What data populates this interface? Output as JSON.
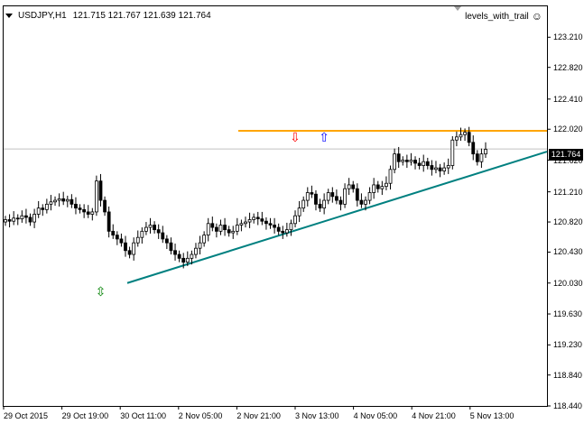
{
  "header": {
    "symbol_timeframe": "USDJPY,H1",
    "ohlc": "121.715 121.767 121.639 121.764"
  },
  "indicator": {
    "name": "levels_with_trail",
    "icon": "smiley-icon"
  },
  "current_price_label": "121.764",
  "colors": {
    "background": "#ffffff",
    "candle": "#000000",
    "resistance_line": "#ffa500",
    "trend_line": "#008080",
    "sell_arrow": "#ff0000",
    "buy_arrow": "#0000ff",
    "double_arrow": "#008000",
    "bid_line": "#c0c0c0"
  },
  "y_axis": {
    "ticks": [
      "123.210",
      "122.820",
      "122.410",
      "122.020",
      "121.620",
      "121.210",
      "120.820",
      "120.430",
      "120.030",
      "119.630",
      "119.230",
      "118.840",
      "118.440"
    ]
  },
  "x_axis": {
    "ticks": [
      "29 Oct 2015",
      "29 Oct 19:00",
      "30 Oct 11:00",
      "2 Nov 05:00",
      "2 Nov 21:00",
      "3 Nov 13:00",
      "4 Nov 05:00",
      "4 Nov 21:00",
      "5 Nov 13:00"
    ]
  },
  "chart_data": {
    "type": "candlestick",
    "ylim": [
      118.44,
      123.61
    ],
    "resistance_level": 122.0,
    "trend_line": {
      "from": 120.03,
      "to": 121.73
    },
    "bid_price": 121.764,
    "closes": [
      120.85,
      120.83,
      120.87,
      120.86,
      120.9,
      120.88,
      120.82,
      120.92,
      121.0,
      120.98,
      121.05,
      121.08,
      121.1,
      121.12,
      121.09,
      121.11,
      121.05,
      121.0,
      120.98,
      120.95,
      120.92,
      120.95,
      121.35,
      121.1,
      120.95,
      120.7,
      120.65,
      120.6,
      120.55,
      120.45,
      120.4,
      120.55,
      120.62,
      120.7,
      120.75,
      120.78,
      120.72,
      120.68,
      120.6,
      120.55,
      120.45,
      120.4,
      120.35,
      120.3,
      120.35,
      120.4,
      120.48,
      120.55,
      120.65,
      120.8,
      120.75,
      120.7,
      120.78,
      120.72,
      120.68,
      120.7,
      120.78,
      120.8,
      120.82,
      120.85,
      120.88,
      120.86,
      120.83,
      120.8,
      120.78,
      120.75,
      120.7,
      120.68,
      120.72,
      120.8,
      120.9,
      121.0,
      121.1,
      121.2,
      121.18,
      121.05,
      121.0,
      121.1,
      121.2,
      121.15,
      121.1,
      121.05,
      121.25,
      121.3,
      121.25,
      121.1,
      121.05,
      121.1,
      121.2,
      121.3,
      121.25,
      121.28,
      121.32,
      121.5,
      121.7,
      121.6,
      121.62,
      121.6,
      121.62,
      121.58,
      121.55,
      121.6,
      121.55,
      121.5,
      121.52,
      121.48,
      121.52,
      121.55,
      121.88,
      121.92,
      121.95,
      121.98,
      121.85,
      121.7,
      121.6,
      121.7,
      121.76
    ]
  },
  "signals": [
    {
      "type": "sell",
      "glyph": "⇩",
      "price": 121.92,
      "index": 70
    },
    {
      "type": "buy",
      "glyph": "⇧",
      "price": 121.92,
      "index": 77
    },
    {
      "type": "both",
      "glyph": "⇳",
      "price": 119.92,
      "index": 23
    }
  ]
}
